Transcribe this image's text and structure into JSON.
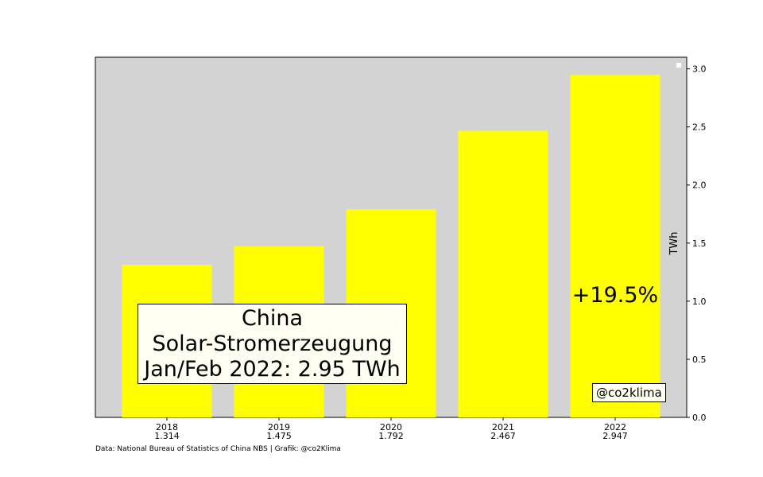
{
  "chart_data": {
    "type": "bar",
    "categories": [
      "2018",
      "2019",
      "2020",
      "2021",
      "2022"
    ],
    "category_value_labels": [
      "1.314",
      "1.475",
      "1.792",
      "2.467",
      "2.947"
    ],
    "values": [
      1.314,
      1.475,
      1.792,
      2.467,
      2.947
    ],
    "ylabel": "TWh",
    "ylim": [
      0,
      3.1
    ],
    "yticks": [
      "0.0",
      "0.5",
      "1.0",
      "1.5",
      "2.0",
      "2.5",
      "3.0"
    ],
    "y_axis_side": "right",
    "grid": false,
    "bar_color": "#ffff00",
    "plot_background": "#d3d3d3",
    "annotations": {
      "title_lines": [
        "China",
        "Solar-Stromerzeugung",
        "Jan/Feb 2022: 2.95 TWh"
      ],
      "change": "+19.5%",
      "handle": "@co2klima"
    },
    "source": "Data: National Bureau of Statistics of China NBS | Grafik: @co2Klima"
  }
}
